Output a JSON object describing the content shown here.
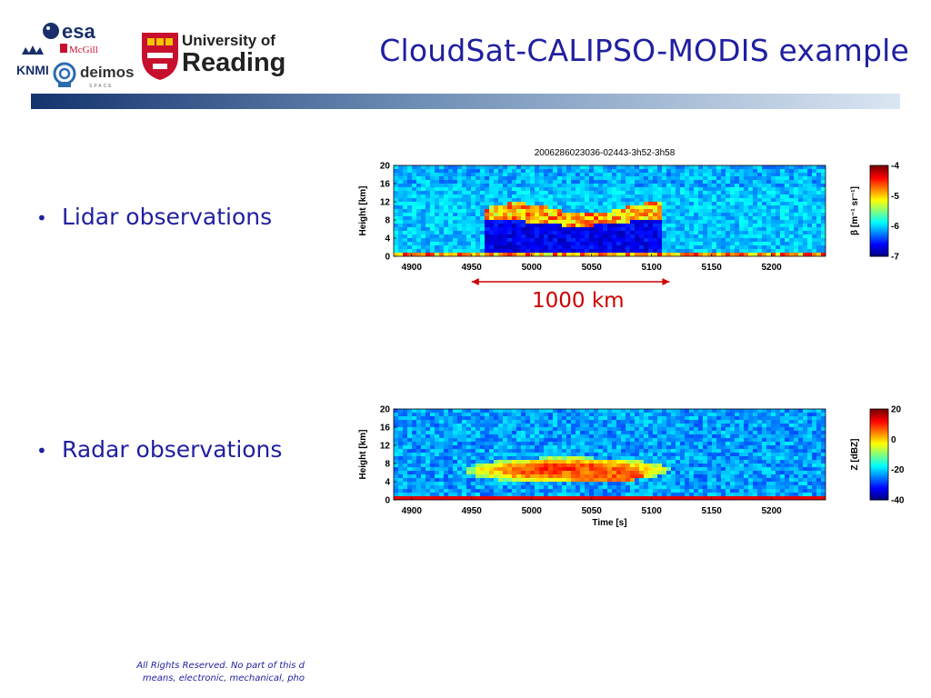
{
  "slide": {
    "title": "CloudSat-CALIPSO-MODIS example",
    "bullets": [
      "Lidar observations",
      "Radar observations"
    ],
    "footer_lines": [
      "All Rights Reserved. No part of this d",
      "means, electronic, mechanical, pho"
    ]
  },
  "logos": {
    "esa": "esa",
    "mcgill": "McGill",
    "knmi": "KNMI",
    "deimos": "deimos",
    "deimos_sub": "SPACE",
    "reading_line1": "University of",
    "reading_line2": "Reading"
  },
  "colors": {
    "title": "#1f1fa0",
    "annotation": "#cc0000",
    "bar_dark": "#1a3a7a",
    "bar_light": "#dbe6f3"
  },
  "chart_data": [
    {
      "type": "heatmap",
      "name": "lidar",
      "title": "2006286023036-02443-3h52-3h58",
      "xlabel": "",
      "ylabel": "Height [km]",
      "xticks": [
        "4900",
        "4950",
        "5000",
        "5050",
        "5100",
        "5150",
        "5200"
      ],
      "yticks": [
        "20",
        "16",
        "12",
        "8",
        "4",
        "0"
      ],
      "xlim": [
        4885,
        5245
      ],
      "ylim": [
        0,
        20
      ],
      "colorbar": {
        "label": "β [m⁻¹ sr⁻¹]",
        "ticks": [
          "-4",
          "-5",
          "-6",
          "-7"
        ],
        "range": [
          -7,
          -4
        ]
      },
      "annotation": {
        "text": "1000 km",
        "x_from": 4950,
        "x_to": 5115
      }
    },
    {
      "type": "heatmap",
      "name": "radar",
      "title": "",
      "xlabel": "Time [s]",
      "ylabel": "Height [km]",
      "xticks": [
        "4900",
        "4950",
        "5000",
        "5050",
        "5100",
        "5150",
        "5200"
      ],
      "yticks": [
        "20",
        "16",
        "12",
        "8",
        "4",
        "0"
      ],
      "xlim": [
        4885,
        5245
      ],
      "ylim": [
        0,
        20
      ],
      "colorbar": {
        "label": "Z [dBZ]",
        "ticks": [
          "20",
          "0",
          "-20",
          "-40"
        ],
        "range": [
          -40,
          20
        ]
      }
    }
  ]
}
